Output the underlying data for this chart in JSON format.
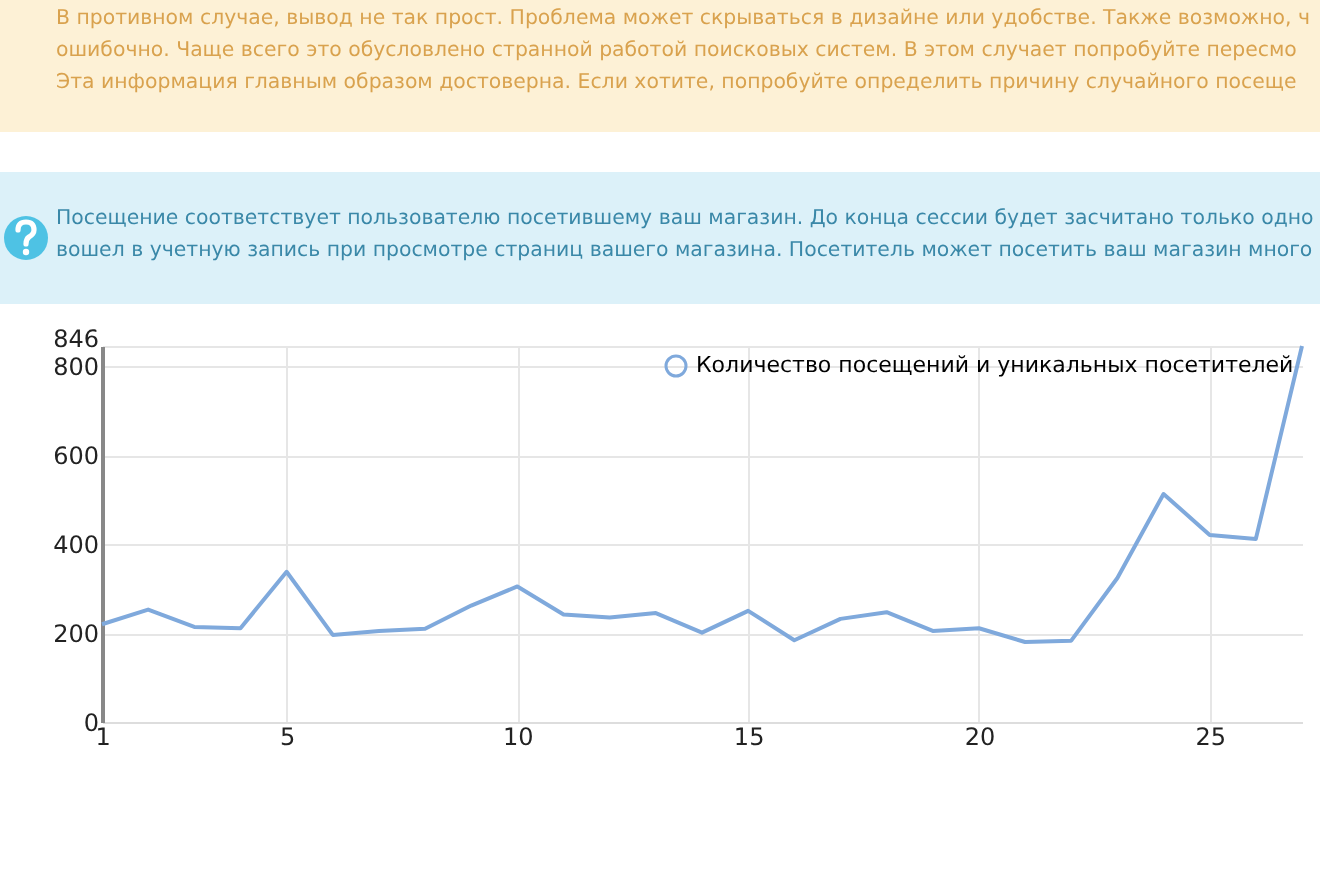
{
  "chart_data": {
    "type": "line",
    "annotations": [
      "В противном случае, вывод не так прост. Проблема может скрываться в дизайне или удобстве. Также возможно, ч",
      "ошибочно. Чаще всего это обусловлено странной работой поисковых систем. В этом случает попробуйте пересмо",
      "Эта информация главным образом достоверна. Если хотите, попробуйте определить причину случайного посеще",
      "Посещение соответствует пользователю посетившему ваш магазин. До конца сессии будет засчитано только одно",
      "вошел в учетную запись при просмотре страниц вашего магазина. Посетитель может посетить ваш магазин много"
    ],
    "x": [
      1,
      2,
      3,
      4,
      5,
      6,
      7,
      8,
      9,
      10,
      11,
      12,
      13,
      14,
      15,
      16,
      17,
      18,
      19,
      20,
      21,
      22,
      23,
      24,
      25,
      26,
      27
    ],
    "series": [
      {
        "name": "Количество посещений и уникальных посетителей",
        "color": "#7fa9dc",
        "values": [
          220,
          253,
          214,
          211,
          338,
          196,
          205,
          210,
          262,
          305,
          242,
          235,
          245,
          201,
          250,
          184,
          232,
          247,
          205,
          211,
          180,
          183,
          324,
          513,
          421,
          412,
          846
        ]
      }
    ],
    "xlim": [
      1,
      27
    ],
    "xticks": [
      1,
      5,
      10,
      15,
      20,
      25
    ],
    "ylim": [
      0,
      846
    ],
    "yticks": [
      0,
      200,
      400,
      600,
      800,
      846
    ],
    "grid": true,
    "legend": "top right",
    "marker": "none",
    "line_style": "solid"
  }
}
